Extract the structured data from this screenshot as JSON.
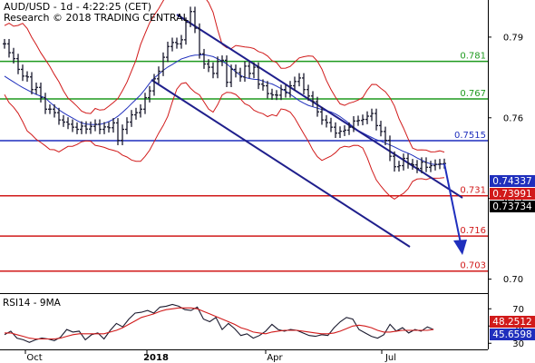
{
  "header": {
    "line1": "AUD/USD - 1d - 4:22:25 (CET)",
    "line2": "Research © 2018 TRADING CENTRAL"
  },
  "chart_data": [
    {
      "type": "line",
      "chart_kind": "ohlc",
      "ylim": [
        0.6948,
        0.8038
      ],
      "price_axis_ticks": [
        "0.79",
        "0.76",
        "0.73",
        "0.70"
      ],
      "x_axis_labels": [
        "Oct",
        "2018",
        "Apr",
        "Jul"
      ],
      "series": [
        {
          "name": "price",
          "x": [
            0,
            5,
            10,
            15,
            20,
            25,
            30,
            35,
            40,
            45,
            50,
            55,
            60,
            65,
            70,
            75,
            80,
            85,
            90,
            95,
            100,
            105,
            110,
            115,
            120,
            125,
            130,
            135,
            140,
            145,
            150,
            155,
            160,
            165,
            170,
            175,
            180,
            185,
            190,
            195,
            200,
            205,
            210,
            215,
            220,
            225,
            230,
            235,
            240,
            245,
            250,
            255,
            260,
            265,
            270,
            275,
            280,
            285,
            290,
            295,
            300,
            305,
            310,
            315,
            320,
            325,
            330,
            335,
            340,
            345,
            350,
            355,
            360,
            365,
            370,
            375,
            380,
            385,
            390,
            395,
            400,
            405,
            410,
            415,
            420,
            425,
            430,
            435,
            440,
            445,
            450,
            455,
            460,
            465,
            470,
            475,
            480,
            485
          ],
          "values": [
            0.7875,
            0.7842,
            0.782,
            0.778,
            0.7755,
            0.7752,
            0.7705,
            0.7713,
            0.7675,
            0.7632,
            0.7632,
            0.7619,
            0.7592,
            0.7584,
            0.7576,
            0.7565,
            0.7557,
            0.7569,
            0.7558,
            0.7568,
            0.7576,
            0.7557,
            0.7566,
            0.7563,
            0.7581,
            0.7516,
            0.7557,
            0.7584,
            0.7611,
            0.7619,
            0.7632,
            0.7675,
            0.77,
            0.7745,
            0.7773,
            0.7825,
            0.7865,
            0.788,
            0.7875,
            0.789,
            0.7955,
            0.7995,
            0.7933,
            0.7838,
            0.78,
            0.7788,
            0.7765,
            0.781,
            0.7814,
            0.7732,
            0.778,
            0.7768,
            0.7752,
            0.7792,
            0.7765,
            0.7788,
            0.7725,
            0.7719,
            0.769,
            0.7685,
            0.7684,
            0.7705,
            0.7693,
            0.7719,
            0.7735,
            0.7748,
            0.7705,
            0.7681,
            0.766,
            0.7622,
            0.7592,
            0.7582,
            0.7565,
            0.7543,
            0.755,
            0.7554,
            0.7565,
            0.7588,
            0.759,
            0.7594,
            0.7606,
            0.7616,
            0.7571,
            0.7549,
            0.7516,
            0.7457,
            0.7418,
            0.7422,
            0.7449,
            0.7429,
            0.7425,
            0.7412,
            0.7435,
            0.7416,
            0.7422,
            0.7427,
            0.7429,
            0.743
          ]
        }
      ],
      "levels": [
        {
          "value": 0.781,
          "label": "0.781",
          "color": "#1f9a1f"
        },
        {
          "value": 0.767,
          "label": "0.767",
          "color": "#1f9a1f"
        },
        {
          "value": 0.7515,
          "label": "0.7515",
          "color": "#1f2fbd"
        },
        {
          "value": 0.731,
          "label": "0.731",
          "color": "#d11a1a"
        },
        {
          "value": 0.716,
          "label": "0.716",
          "color": "#d11a1a"
        },
        {
          "value": 0.703,
          "label": "0.703",
          "color": "#d11a1a"
        }
      ],
      "price_badges": [
        {
          "label": "0.74337",
          "bg": "#1f2fbd",
          "color": "#ffffff"
        },
        {
          "label": "0.73991",
          "bg": "#d11a1a",
          "color": "#ffffff"
        },
        {
          "label": "0.73734",
          "bg": "#000000",
          "color": "#ffffff"
        }
      ],
      "colors": {
        "price": "#1a1a2e",
        "band": "#d11a1a",
        "ma": "#1f2fbd",
        "channel": "#1f1f8c",
        "arrow": "#1f2fbd"
      }
    },
    {
      "type": "line",
      "title": "RSI14 - 9MA",
      "ylim": [
        25,
        85
      ],
      "axis_ticks": [
        "70",
        "50",
        "30"
      ],
      "series": [
        {
          "name": "RSI14",
          "x": [
            0,
            7,
            14,
            21,
            28,
            35,
            42,
            49,
            56,
            63,
            70,
            77,
            84,
            91,
            98,
            105,
            112,
            119,
            126,
            133,
            140,
            147,
            154,
            161,
            168,
            175,
            182,
            189,
            196,
            203,
            210,
            217,
            224,
            231,
            238,
            245,
            252,
            259,
            266,
            273,
            280,
            287,
            294,
            301,
            308,
            315,
            322,
            329,
            336,
            343,
            350,
            357,
            364,
            371,
            378,
            385,
            392,
            399,
            406,
            413,
            420,
            427,
            434,
            441,
            448,
            455,
            462,
            469,
            476,
            483
          ],
          "values": [
            40,
            44,
            36,
            34,
            31,
            34,
            36,
            35,
            33,
            37,
            46,
            43,
            44,
            34,
            40,
            42,
            35,
            45,
            53,
            49,
            58,
            65,
            66,
            68,
            65,
            72,
            73,
            75,
            73,
            69,
            68,
            72,
            58,
            55,
            60,
            46,
            53,
            47,
            39,
            41,
            36,
            39,
            44,
            52,
            46,
            44,
            46,
            45,
            42,
            39,
            38,
            40,
            39,
            48,
            55,
            60,
            58,
            46,
            42,
            38,
            36,
            40,
            52,
            44,
            48,
            42,
            46,
            44,
            49,
            46
          ]
        },
        {
          "name": "9MA",
          "x": [
            0,
            7,
            14,
            21,
            28,
            35,
            42,
            49,
            56,
            63,
            70,
            77,
            84,
            91,
            98,
            105,
            112,
            119,
            126,
            133,
            140,
            147,
            154,
            161,
            168,
            175,
            182,
            189,
            196,
            203,
            210,
            217,
            224,
            231,
            238,
            245,
            252,
            259,
            266,
            273,
            280,
            287,
            294,
            301,
            308,
            315,
            322,
            329,
            336,
            343,
            350,
            357,
            364,
            371,
            378,
            385,
            392,
            399,
            406,
            413,
            420,
            427,
            434,
            441,
            448,
            455,
            462,
            469,
            476,
            483
          ],
          "values": [
            42,
            42,
            40,
            38,
            36,
            35,
            35,
            35,
            35,
            36,
            38,
            40,
            41,
            41,
            41,
            41,
            41,
            43,
            45,
            48,
            52,
            56,
            60,
            62,
            64,
            67,
            69,
            70,
            71,
            71,
            71,
            70,
            67,
            64,
            61,
            58,
            55,
            52,
            48,
            46,
            43,
            42,
            41,
            43,
            44,
            45,
            45,
            45,
            44,
            43,
            42,
            41,
            41,
            42,
            44,
            47,
            50,
            51,
            50,
            48,
            45,
            43,
            43,
            44,
            45,
            45,
            45,
            45,
            45,
            46
          ]
        }
      ],
      "badges": [
        {
          "label": "48.2512",
          "bg": "#d11a1a",
          "color": "#ffffff"
        },
        {
          "label": "45.6598",
          "bg": "#1f2fbd",
          "color": "#ffffff"
        }
      ]
    }
  ]
}
